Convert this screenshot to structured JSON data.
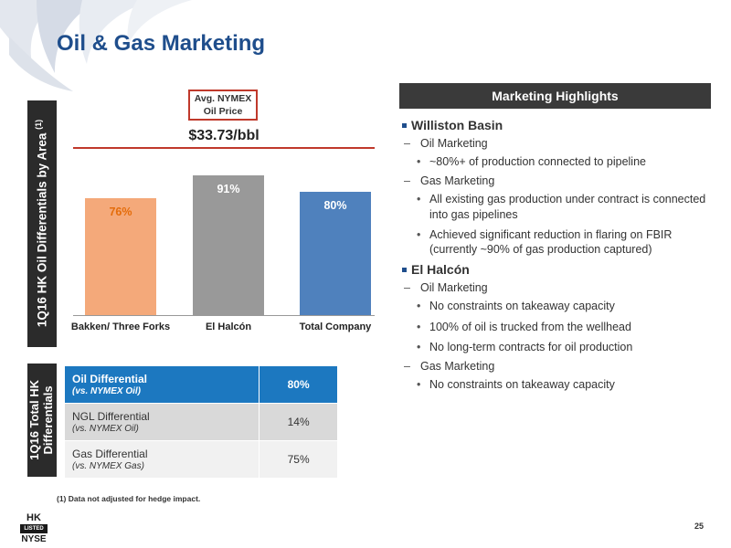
{
  "title": "Oil & Gas Marketing",
  "side_labels": {
    "chart_main": "1Q16 HK Oil Differentials by Area",
    "chart_note_ref": "(1)",
    "table": [
      "1Q16 Total HK",
      "Differentials"
    ]
  },
  "chart_data": {
    "type": "bar",
    "categories": [
      "Bakken/ Three Forks",
      "El Halcón",
      "Total Company"
    ],
    "values": [
      76,
      91,
      80
    ],
    "value_labels": [
      "76%",
      "91%",
      "80%"
    ],
    "colors": [
      "#f4a97a",
      "#999999",
      "#4f81bd"
    ],
    "label_colors": [
      "#e46c0a",
      "#ffffff",
      "#ffffff"
    ],
    "ylim": [
      0,
      100
    ],
    "reference_box": [
      "Avg. NYMEX",
      "Oil Price"
    ],
    "reference_label": "$33.73/bbl",
    "reference_color": "#c0392b"
  },
  "table": {
    "rows": [
      {
        "name": "Oil Differential",
        "sub": "(vs. NYMEX Oil)",
        "value": "80%"
      },
      {
        "name": "NGL Differential",
        "sub": "(vs. NYMEX Oil)",
        "value": "14%"
      },
      {
        "name": "Gas Differential",
        "sub": "(vs. NYMEX Gas)",
        "value": "75%"
      }
    ]
  },
  "footnote": "(1) Data not adjusted for hedge impact.",
  "logo": {
    "top": "HK",
    "mid": "LISTED",
    "bottom": "NYSE"
  },
  "page_number": "25",
  "highlights": {
    "header": "Marketing Highlights",
    "sections": [
      {
        "title": "Williston Basin",
        "groups": [
          {
            "label": "Oil Marketing",
            "bullets": [
              "~80%+ of production connected to pipeline"
            ]
          },
          {
            "label": "Gas Marketing",
            "bullets": [
              "All existing gas production under contract is connected into gas pipelines",
              "Achieved significant reduction in flaring on FBIR (currently ~90% of gas production captured)"
            ]
          }
        ]
      },
      {
        "title": "El Halcón",
        "groups": [
          {
            "label": "Oil Marketing",
            "bullets": [
              "No constraints on takeaway capacity",
              "100% of oil is trucked from the wellhead",
              "No long-term contracts for oil production"
            ]
          },
          {
            "label": "Gas Marketing",
            "bullets": [
              "No constraints on takeaway capacity"
            ]
          }
        ]
      }
    ]
  }
}
